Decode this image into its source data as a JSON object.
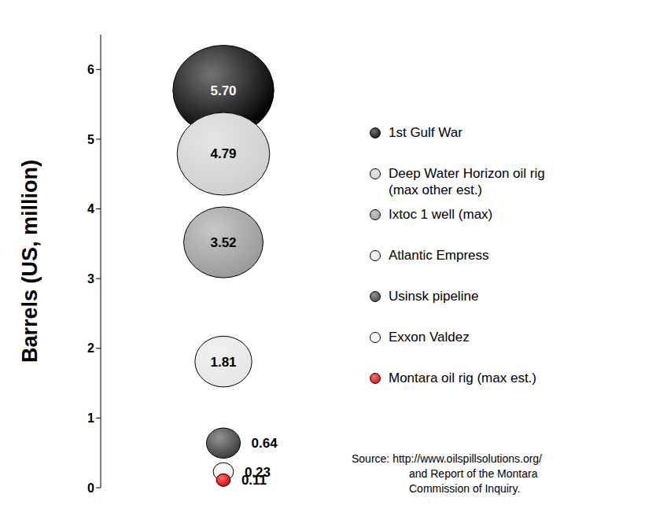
{
  "chart_data": {
    "type": "bubble",
    "ylabel": "Barrels (US, million)",
    "ylim": [
      0,
      6.5
    ],
    "yticks": [
      0,
      1,
      2,
      3,
      4,
      5,
      6
    ],
    "grid": false,
    "legend": "right",
    "data_labels": true,
    "series": [
      {
        "name": "1st Gulf War",
        "color": "#000000",
        "values": [
          5.7
        ],
        "value_labels": [
          "5.70"
        ]
      },
      {
        "name": "Deep Water Horizon oil rig\n(max other est.)",
        "color": "#cfcfcf",
        "values": [
          4.79
        ],
        "value_labels": [
          "4.79"
        ]
      },
      {
        "name": "Ixtoc 1 well (max)",
        "color": "#9a9a9a",
        "values": [
          3.52
        ],
        "value_labels": [
          "3.52"
        ]
      },
      {
        "name": "Atlantic Empress",
        "color": "#e6e6e6",
        "values": [
          1.81
        ],
        "value_labels": [
          "1.81"
        ]
      },
      {
        "name": "Usinsk pipeline",
        "color": "#3c3c3c",
        "values": [
          0.64
        ],
        "value_labels": [
          "0.64"
        ]
      },
      {
        "name": "Exxon Valdez",
        "color": "#f2f2f2",
        "values": [
          0.23
        ],
        "value_labels": [
          "0.23"
        ]
      },
      {
        "name": "Montara oil rig (max est.)",
        "color": "#e00000",
        "values": [
          0.11
        ],
        "value_labels": [
          "0.11"
        ]
      }
    ],
    "annotations": [
      "Source: http://www.oilspillsolutions.org/",
      "and Report of the Montara",
      "Commission of Inquiry."
    ]
  }
}
